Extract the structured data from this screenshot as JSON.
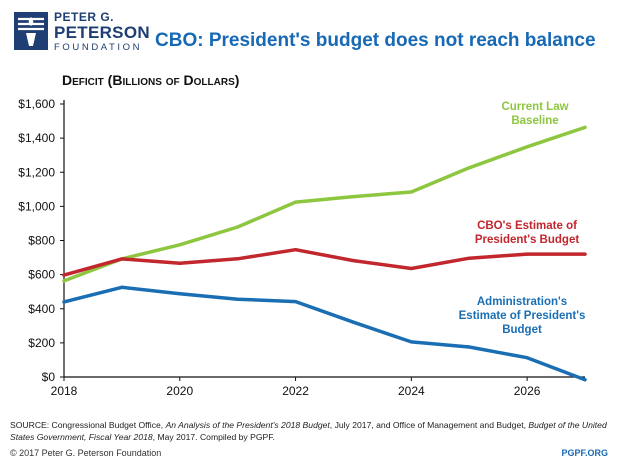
{
  "logo": {
    "line1": "PETER G.",
    "line2": "PETERSON",
    "line3": "FOUNDATION",
    "icon": "torch-flag-icon",
    "color": "#1f3e73"
  },
  "title": "CBO: President's budget does not reach balance",
  "chart_data": {
    "type": "line",
    "title": "CBO: President's budget does not reach balance",
    "ylabel": "Deficit (Billions of Dollars)",
    "xlabel": "",
    "x": [
      2018,
      2019,
      2020,
      2021,
      2022,
      2023,
      2024,
      2025,
      2026,
      2027
    ],
    "xlim": [
      2018,
      2027
    ],
    "ylim": [
      0,
      1600
    ],
    "x_ticks": [
      2018,
      2020,
      2022,
      2024,
      2026
    ],
    "y_ticks": [
      0,
      200,
      400,
      600,
      800,
      1000,
      1200,
      1400,
      1600
    ],
    "y_tick_labels": [
      "$0",
      "$200",
      "$400",
      "$600",
      "$800",
      "$1,000",
      "$1,200",
      "$1,400",
      "$1,600"
    ],
    "grid": false,
    "series": [
      {
        "name": "Current Law Baseline",
        "label_lines": [
          "Current Law",
          "Baseline"
        ],
        "color": "#8dc63f",
        "values": [
          563,
          692,
          775,
          879,
          1025,
          1057,
          1084,
          1226,
          1349,
          1463
        ]
      },
      {
        "name": "CBO's Estimate of President's Budget",
        "label_lines": [
          "CBO's Estimate of",
          "President's Budget"
        ],
        "color": "#c1272d",
        "values": [
          597,
          692,
          667,
          693,
          746,
          682,
          636,
          696,
          720,
          720
        ]
      },
      {
        "name": "Administration's Estimate of President's Budget",
        "label_lines": [
          "Administration's",
          "Estimate of President's",
          "Budget"
        ],
        "color": "#1a6eb4",
        "values": [
          440,
          526,
          488,
          456,
          442,
          321,
          206,
          176,
          113,
          -16
        ]
      }
    ]
  },
  "source": {
    "parts": [
      {
        "text": "SOURCE: Congressional Budget Office, ",
        "italic": false
      },
      {
        "text": "An Analysis of the President's 2018 Budget",
        "italic": true
      },
      {
        "text": ", July 2017, and Office of Management and Budget, ",
        "italic": false
      },
      {
        "text": "Budget of the United States Government, Fiscal Year 2018",
        "italic": true
      },
      {
        "text": ", May 2017. Compiled by PGPF.",
        "italic": false
      }
    ]
  },
  "footer": {
    "copyright": "© 2017 Peter G. Peterson Foundation",
    "site": "PGPF.ORG"
  }
}
